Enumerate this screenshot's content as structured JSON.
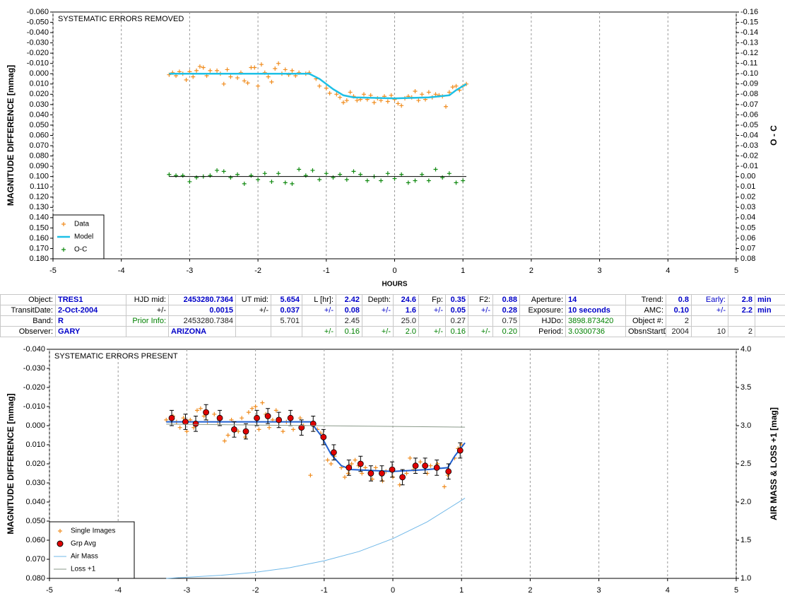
{
  "chart_data": [
    {
      "type": "scatter",
      "annotation": "SYSTEMATIC ERRORS REMOVED",
      "xlabel": "HOURS",
      "ylabel": "MAGNITUDE DIFFERENCE [mmag]",
      "y2label": "O - C",
      "xlim": [
        -5,
        5
      ],
      "xticks": [
        -5,
        -4,
        -3,
        -2,
        -1,
        0,
        1,
        2,
        3,
        4,
        5
      ],
      "ylim": [
        -0.06,
        0.18
      ],
      "y_inverted": true,
      "yticks": [
        {
          "value": -0.06,
          "label": "-0.060"
        },
        {
          "value": -0.05,
          "label": "-0.050"
        },
        {
          "value": -0.04,
          "label": "-0.040"
        },
        {
          "value": -0.03,
          "label": "-0.030"
        },
        {
          "value": -0.02,
          "label": "-0.020"
        },
        {
          "value": -0.01,
          "label": "-0.010"
        },
        {
          "value": 0,
          "label": "0.000"
        },
        {
          "value": 0.01,
          "label": "0.010"
        },
        {
          "value": 0.02,
          "label": "0.020"
        },
        {
          "value": 0.03,
          "label": "0.030"
        },
        {
          "value": 0.04,
          "label": "0.040"
        },
        {
          "value": 0.05,
          "label": "0.050"
        },
        {
          "value": 0.06,
          "label": "0.060"
        },
        {
          "value": 0.07,
          "label": "0.070"
        },
        {
          "value": 0.08,
          "label": "0.080"
        },
        {
          "value": 0.09,
          "label": "0.090"
        },
        {
          "value": 0.1,
          "label": "0.100"
        },
        {
          "value": 0.11,
          "label": "0.110"
        },
        {
          "value": 0.12,
          "label": "0.120"
        },
        {
          "value": 0.13,
          "label": "0.130"
        },
        {
          "value": 0.14,
          "label": "0.140"
        },
        {
          "value": 0.15,
          "label": "0.150"
        },
        {
          "value": 0.16,
          "label": "0.160"
        },
        {
          "value": 0.17,
          "label": "0.170"
        },
        {
          "value": 0.18,
          "label": "0.180"
        }
      ],
      "y2lim": [
        -0.16,
        0.08
      ],
      "y2_inverted": true,
      "y2ticks": [
        {
          "value": -0.16,
          "label": "-0.16"
        },
        {
          "value": -0.15,
          "label": "-0.15"
        },
        {
          "value": -0.14,
          "label": "-0.14"
        },
        {
          "value": -0.13,
          "label": "-0.13"
        },
        {
          "value": -0.12,
          "label": "-0.12"
        },
        {
          "value": -0.11,
          "label": "-0.11"
        },
        {
          "value": -0.1,
          "label": "-0.10"
        },
        {
          "value": -0.09,
          "label": "-0.09"
        },
        {
          "value": -0.08,
          "label": "-0.08"
        },
        {
          "value": -0.07,
          "label": "-0.07"
        },
        {
          "value": -0.06,
          "label": "-0.06"
        },
        {
          "value": -0.05,
          "label": "-0.05"
        },
        {
          "value": -0.04,
          "label": "-0.04"
        },
        {
          "value": -0.03,
          "label": "-0.03"
        },
        {
          "value": -0.02,
          "label": "-0.02"
        },
        {
          "value": -0.01,
          "label": "-0.01"
        },
        {
          "value": 0,
          "label": "0.00"
        },
        {
          "value": 0.01,
          "label": "0.01"
        },
        {
          "value": 0.02,
          "label": "0.02"
        },
        {
          "value": 0.03,
          "label": "0.03"
        },
        {
          "value": 0.04,
          "label": "0.04"
        },
        {
          "value": 0.05,
          "label": "0.05"
        },
        {
          "value": 0.06,
          "label": "0.06"
        },
        {
          "value": 0.07,
          "label": "0.07"
        },
        {
          "value": 0.08,
          "label": "0.08"
        }
      ],
      "grid": "x",
      "legend": "lower left",
      "series": [
        {
          "name": "Data",
          "color": "#f08c1e",
          "mode": "markers",
          "marker": "plus",
          "x": [
            -3.3,
            -3.25,
            -3.2,
            -3.15,
            -3.1,
            -3.05,
            -3.0,
            -2.95,
            -2.9,
            -2.85,
            -2.8,
            -2.75,
            -2.7,
            -2.6,
            -2.55,
            -2.5,
            -2.45,
            -2.4,
            -2.3,
            -2.25,
            -2.2,
            -2.15,
            -2.1,
            -2.05,
            -2.0,
            -1.95,
            -1.9,
            -1.85,
            -1.8,
            -1.75,
            -1.7,
            -1.65,
            -1.6,
            -1.55,
            -1.5,
            -1.45,
            -1.4,
            -1.3,
            -1.25,
            -1.15,
            -1.1,
            -1.0,
            -0.95,
            -0.85,
            -0.8,
            -0.75,
            -0.7,
            -0.65,
            -0.6,
            -0.55,
            -0.5,
            -0.45,
            -0.4,
            -0.35,
            -0.3,
            -0.25,
            -0.2,
            -0.15,
            -0.1,
            -0.05,
            0,
            0.05,
            0.1,
            0.15,
            0.2,
            0.25,
            0.3,
            0.35,
            0.4,
            0.45,
            0.5,
            0.55,
            0.6,
            0.65,
            0.7,
            0.75,
            0.8,
            0.85,
            0.9,
            0.95,
            1.0,
            1.05
          ],
          "values": [
            0.001,
            -0.001,
            0.002,
            -0.002,
            0.0,
            0.006,
            -0.002,
            0.003,
            -0.003,
            -0.007,
            -0.006,
            0.002,
            -0.003,
            -0.003,
            0.0,
            0.01,
            -0.004,
            0.003,
            0.004,
            -0.001,
            0.007,
            0.009,
            -0.006,
            -0.006,
            0.012,
            -0.009,
            -0.001,
            0.003,
            0.008,
            -0.005,
            -0.01,
            0.0,
            -0.004,
            0.001,
            -0.003,
            0.002,
            -0.001,
            0.0,
            -0.001,
            0.005,
            0.012,
            0.014,
            0.019,
            0.02,
            0.023,
            0.028,
            0.026,
            0.018,
            0.022,
            0.026,
            0.025,
            0.02,
            0.025,
            0.021,
            0.028,
            0.024,
            0.026,
            0.022,
            0.027,
            0.021,
            0.025,
            0.029,
            0.031,
            0.024,
            0.022,
            0.023,
            0.017,
            0.026,
            0.02,
            0.025,
            0.018,
            0.023,
            0.02,
            0.021,
            0.022,
            0.032,
            0.018,
            0.013,
            0.012,
            0.016,
            0.012,
            0.01
          ]
        },
        {
          "name": "Model",
          "color": "#1ec0e6",
          "mode": "line",
          "width": 2.5,
          "x": [
            -3.3,
            -1.25,
            -1.1,
            -0.9,
            -0.75,
            -0.6,
            0,
            0.5,
            0.8,
            0.9,
            1.05
          ],
          "values": [
            0,
            0,
            0.005,
            0.015,
            0.021,
            0.023,
            0.024,
            0.023,
            0.021,
            0.016,
            0.01
          ]
        },
        {
          "name": "O-C",
          "color": "#118a11",
          "mode": "markers",
          "marker": "plus",
          "axis": "y2",
          "x": [
            -3.3,
            -3.2,
            -3.1,
            -3.0,
            -2.9,
            -2.8,
            -2.7,
            -2.6,
            -2.5,
            -2.4,
            -2.3,
            -2.2,
            -2.1,
            -2.0,
            -1.9,
            -1.8,
            -1.7,
            -1.6,
            -1.5,
            -1.4,
            -1.3,
            -1.2,
            -1.1,
            -1.0,
            -0.9,
            -0.8,
            -0.7,
            -0.6,
            -0.5,
            -0.4,
            -0.3,
            -0.2,
            -0.1,
            0,
            0.1,
            0.2,
            0.3,
            0.4,
            0.5,
            0.6,
            0.7,
            0.8,
            0.9,
            1.0
          ],
          "values": [
            -0.002,
            -0.001,
            -0.001,
            0.005,
            0.001,
            0.0,
            -0.001,
            -0.006,
            -0.005,
            0.001,
            -0.002,
            0.007,
            -0.001,
            0.003,
            -0.003,
            0.005,
            -0.003,
            0.006,
            0.007,
            -0.007,
            -0.001,
            -0.006,
            0.003,
            -0.003,
            0.001,
            -0.002,
            0.003,
            -0.005,
            -0.002,
            0.004,
            0.0,
            0.004,
            -0.003,
            0.002,
            -0.002,
            0.006,
            0.004,
            -0.002,
            0.004,
            -0.007,
            0.001,
            -0.003,
            0.006,
            0.004
          ]
        },
        {
          "color": "#000000",
          "mode": "line",
          "width": 1,
          "axis": "y2",
          "x": [
            -3.3,
            1.05
          ],
          "values": [
            0,
            0
          ]
        }
      ]
    },
    {
      "type": "scatter",
      "annotation": "SYSTEMATIC ERRORS PRESENT",
      "ylabel": "MAGNITUDE DIFFERENCE [mmag]",
      "y2label": "AIR MASS & LOSS +1 [mag]",
      "xlim": [
        -5,
        5
      ],
      "xticks": [
        -5,
        -4,
        -3,
        -2,
        -1,
        0,
        1,
        2,
        3,
        4,
        5
      ],
      "ylim": [
        -0.04,
        0.08
      ],
      "y_inverted": true,
      "yticks": [
        {
          "value": -0.04,
          "label": "-0.040"
        },
        {
          "value": -0.03,
          "label": "-0.030"
        },
        {
          "value": -0.02,
          "label": "-0.020"
        },
        {
          "value": -0.01,
          "label": "-0.010"
        },
        {
          "value": 0,
          "label": "0.000"
        },
        {
          "value": 0.01,
          "label": "0.010"
        },
        {
          "value": 0.02,
          "label": "0.020"
        },
        {
          "value": 0.03,
          "label": "0.030"
        },
        {
          "value": 0.04,
          "label": "0.040"
        },
        {
          "value": 0.05,
          "label": "0.050"
        },
        {
          "value": 0.06,
          "label": "0.060"
        },
        {
          "value": 0.07,
          "label": "0.070"
        },
        {
          "value": 0.08,
          "label": "0.080"
        }
      ],
      "y2lim": [
        1.0,
        4.0
      ],
      "y2_inverted": false,
      "y2ticks": [
        {
          "value": 1.0,
          "label": "1.0"
        },
        {
          "value": 1.5,
          "label": "1.5"
        },
        {
          "value": 2.0,
          "label": "2.0"
        },
        {
          "value": 2.5,
          "label": "2.5"
        },
        {
          "value": 3.0,
          "label": "3.0"
        },
        {
          "value": 3.5,
          "label": "3.5"
        },
        {
          "value": 4.0,
          "label": "4.0"
        }
      ],
      "grid": "x",
      "legend": "lower left",
      "series": [
        {
          "name": "Single Images",
          "color": "#f08c1e",
          "mode": "markers",
          "marker": "plus",
          "x": [
            -3.3,
            -3.2,
            -3.15,
            -3.1,
            -3.05,
            -3.0,
            -2.95,
            -2.9,
            -2.85,
            -2.8,
            -2.75,
            -2.7,
            -2.6,
            -2.55,
            -2.45,
            -2.4,
            -2.35,
            -2.25,
            -2.2,
            -2.15,
            -2.1,
            -2.05,
            -2.0,
            -1.95,
            -1.9,
            -1.85,
            -1.8,
            -1.75,
            -1.7,
            -1.6,
            -1.55,
            -1.45,
            -1.35,
            -1.3,
            -1.2,
            -1.1,
            -1.05,
            -0.95,
            -0.9,
            -0.85,
            -0.75,
            -0.7,
            -0.65,
            -0.6,
            -0.55,
            -0.5,
            -0.45,
            -0.4,
            -0.3,
            -0.25,
            -0.15,
            -0.1,
            0,
            0.1,
            0.2,
            0.25,
            0.3,
            0.4,
            0.5,
            0.55,
            0.65,
            0.75,
            0.8,
            0.9,
            0.95,
            1.0
          ],
          "values": [
            -0.003,
            -0.005,
            -0.002,
            0.001,
            -0.004,
            0.003,
            -0.003,
            0.001,
            -0.008,
            -0.009,
            -0.005,
            -0.002,
            -0.006,
            -0.002,
            0.008,
            0.005,
            -0.003,
            0.003,
            -0.004,
            0.006,
            -0.007,
            -0.009,
            -0.01,
            0.002,
            -0.012,
            -0.006,
            0.001,
            -0.003,
            -0.008,
            0.003,
            -0.002,
            0.002,
            -0.004,
            0.0,
            0.026,
            0.002,
            0.004,
            0.018,
            0.02,
            0.016,
            0.022,
            0.027,
            0.025,
            0.02,
            0.018,
            0.021,
            0.025,
            0.022,
            0.028,
            0.022,
            0.029,
            0.024,
            0.027,
            0.031,
            0.025,
            0.017,
            0.023,
            0.019,
            0.025,
            0.021,
            0.02,
            0.032,
            0.026,
            0.017,
            0.012,
            0.01
          ]
        },
        {
          "color": "#2060d0",
          "mode": "line",
          "width": 2,
          "x": [
            -3.3,
            -1.2,
            -1.05,
            -0.9,
            -0.75,
            -0.6,
            0,
            0.5,
            0.8,
            0.9,
            1.05
          ],
          "values": [
            -0.002,
            -0.002,
            0.005,
            0.015,
            0.021,
            0.023,
            0.024,
            0.023,
            0.022,
            0.016,
            0.009
          ]
        },
        {
          "name": "Grp Avg",
          "color": "#e00000",
          "mode": "markers",
          "marker": "circle",
          "x": [
            -3.22,
            -3.02,
            -2.87,
            -2.72,
            -2.52,
            -2.31,
            -2.14,
            -1.98,
            -1.82,
            -1.66,
            -1.49,
            -1.33,
            -1.16,
            -1.01,
            -0.86,
            -0.64,
            -0.47,
            -0.32,
            -0.16,
            -0.01,
            0.14,
            0.33,
            0.47,
            0.64,
            0.81,
            0.98
          ],
          "values": [
            -0.004,
            -0.002,
            -0.001,
            -0.007,
            -0.004,
            0.002,
            0.003,
            -0.004,
            -0.005,
            -0.003,
            -0.004,
            0.001,
            -0.001,
            0.006,
            0.014,
            0.022,
            0.02,
            0.025,
            0.025,
            0.023,
            0.027,
            0.021,
            0.021,
            0.022,
            0.024,
            0.013
          ],
          "error": [
            0.004,
            0.004,
            0.004,
            0.004,
            0.004,
            0.004,
            0.004,
            0.004,
            0.004,
            0.004,
            0.004,
            0.004,
            0.004,
            0.004,
            0.004,
            0.004,
            0.004,
            0.004,
            0.004,
            0.004,
            0.004,
            0.004,
            0.004,
            0.004,
            0.004,
            0.004
          ]
        },
        {
          "name": "Air Mass",
          "color": "#70b8e8",
          "mode": "line",
          "width": 1,
          "axis": "y2",
          "x": [
            -3.3,
            -2.5,
            -2,
            -1.5,
            -1,
            -0.5,
            0,
            0.5,
            1.05
          ],
          "values": [
            1.0,
            1.04,
            1.08,
            1.14,
            1.23,
            1.35,
            1.52,
            1.74,
            2.05
          ]
        },
        {
          "name": "Loss +1",
          "color": "#8a9a8a",
          "mode": "line",
          "width": 1,
          "axis": "y2",
          "x": [
            -3.3,
            1.05
          ],
          "values": [
            3.02,
            2.98
          ]
        }
      ]
    }
  ],
  "table": {
    "rows": [
      [
        "Object:",
        "TRES1",
        "HJD mid:",
        "2453280.7364",
        "UT mid:",
        "5.654",
        "L [hr]:",
        "2.42",
        "Depth:",
        "24.6",
        "Fp:",
        "0.35",
        "F2:",
        "0.88",
        "Aperture:",
        "14",
        "Trend:",
        "0.8",
        "Early:",
        "2.8",
        "min"
      ],
      [
        "TransitDate:",
        "2-Oct-2004",
        "+/-",
        "0.0015",
        "+/-",
        "0.037",
        "+/-",
        "0.08",
        "+/-",
        "1.6",
        "+/-",
        "0.05",
        "+/-",
        "0.28",
        "Exposure:",
        "10 seconds",
        "AMC:",
        "0.10",
        "+/-",
        "2.2",
        "min"
      ],
      [
        "Band:",
        "R",
        "Prior Info:",
        "2453280.7384",
        null,
        "5.701",
        null,
        "2.45",
        null,
        "25.0",
        null,
        "0.27",
        null,
        "0.75",
        "HJDo:",
        "3898.873420",
        "Object #:",
        "2",
        null,
        null,
        null
      ],
      [
        "Observer:",
        "GARY",
        null,
        "ARIZONA",
        null,
        null,
        "+/-",
        "0.16",
        "+/-",
        "2.0",
        "+/-",
        "0.16",
        "+/-",
        "0.20",
        "Period:",
        "3.0300736",
        "ObsnStartDate:",
        "2004",
        "10",
        "2",
        null
      ]
    ]
  }
}
